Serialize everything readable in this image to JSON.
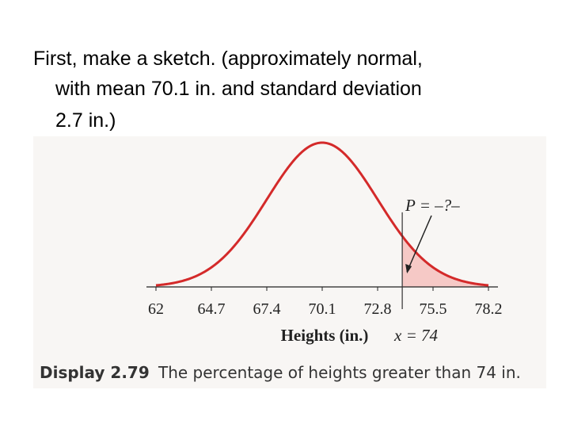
{
  "slide": {
    "lines": [
      "First, make a sketch. (approximately normal,",
      "with mean 70.1 in. and standard deviation",
      "2.7 in.)"
    ]
  },
  "chart_data": {
    "type": "normal",
    "mean": 70.1,
    "sd": 2.7,
    "color": "#d42a2a",
    "shade_color": "#f6c9c6",
    "xlim": [
      62,
      78.2
    ],
    "xticks": [
      62,
      64.7,
      67.4,
      70.1,
      72.8,
      75.5,
      78.2
    ],
    "xlabel": "Heights (in.)",
    "threshold": {
      "value": 74,
      "label": "x = 74"
    },
    "annotation": "P = –?–",
    "caption_number": "Display 2.79",
    "caption": "The percentage of heights greater than 74 in."
  }
}
